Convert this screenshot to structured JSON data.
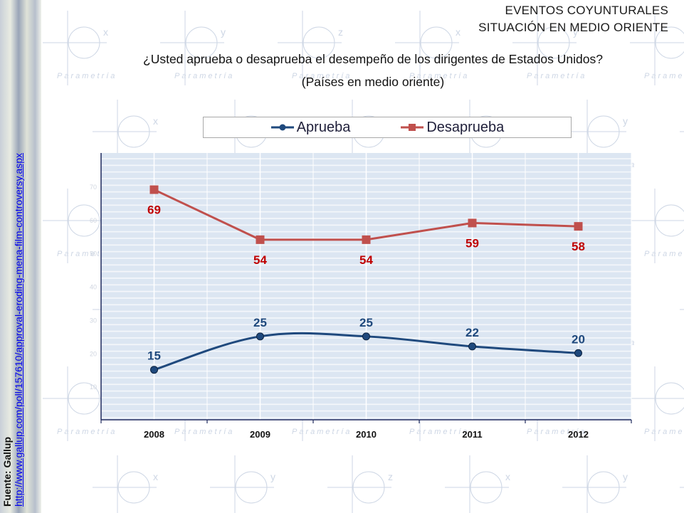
{
  "header": {
    "line1": "EVENTOS COYUNTURALES",
    "line2": "SITUACIÓN EN MEDIO ORIENTE"
  },
  "watermark": {
    "text": "Parametría",
    "glyphs": [
      "x",
      "y",
      "z"
    ]
  },
  "source": {
    "label": "Fuente: Gallup",
    "link": "http://www.gallup.com/poll/157610/approval-eroding-mena-film-controversy.aspx"
  },
  "colors": {
    "aprueba": "#1f497d",
    "desaprueba": "#c0504d",
    "desaprueba_label": "#c00000",
    "plot_bg": "#dce6f2",
    "axis": "#1f2a5e"
  },
  "chart_data": {
    "type": "line",
    "title": "¿Usted aprueba o desaprueba el desempeño de los dirigentes de Estados Unidos?",
    "subtitle": "(Países en medio oriente)",
    "xlabel": "",
    "ylabel": "",
    "categories": [
      "2008",
      "2009",
      "2010",
      "2011",
      "2012"
    ],
    "series": [
      {
        "name": "Aprueba",
        "values": [
          15,
          25,
          25,
          22,
          20
        ],
        "marker": "circle",
        "smooth": true
      },
      {
        "name": "Desaprueba",
        "values": [
          69,
          54,
          54,
          59,
          58
        ],
        "marker": "square",
        "smooth": false
      }
    ],
    "ylim": [
      0,
      80
    ],
    "yticks_faint": [
      10,
      20,
      30,
      40,
      50,
      60,
      70
    ],
    "grid": true,
    "legend": "top",
    "data_labels": true
  }
}
